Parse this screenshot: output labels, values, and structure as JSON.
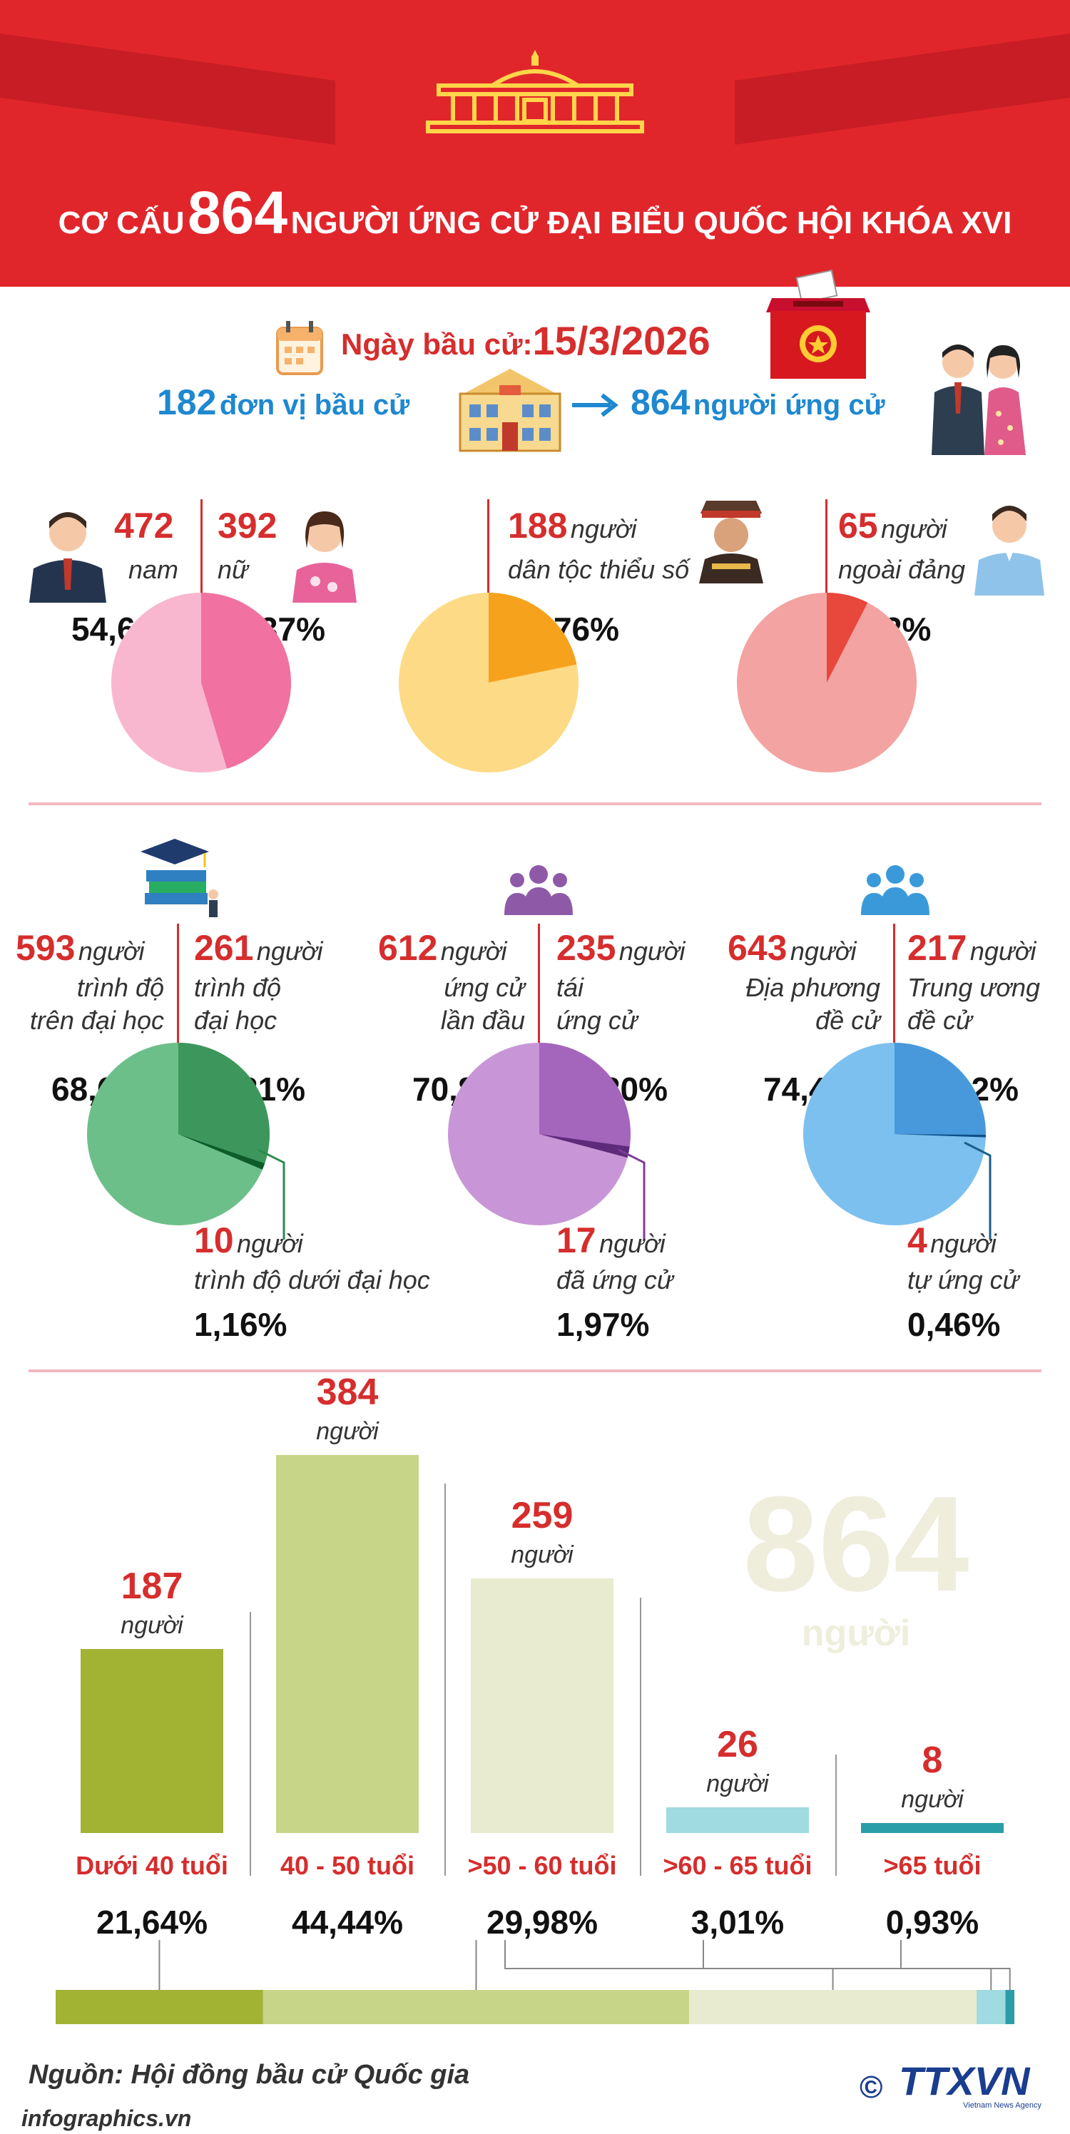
{
  "header": {
    "title_prefix": "CƠ CẤU",
    "title_number": "864",
    "title_suffix": "NGƯỜI ỨNG CỬ ĐẠI BIỂU QUỐC HỘI KHÓA XVI"
  },
  "election": {
    "date_label": "Ngày bầu cử:",
    "date_value": "15/3/2026",
    "units_num": "182",
    "units_label": "đơn vị bầu cử",
    "candidates_num": "864",
    "candidates_label": "người ứng cử"
  },
  "colors": {
    "header_red": "#e1262b",
    "pink": "#f8b7cf",
    "pink_dark": "#f06598",
    "yellow": "#fddb86",
    "orange": "#f7a21c",
    "salmon": "#f3a3a1",
    "red_slice": "#e8473b",
    "green": "#6dbf8a",
    "green_dark": "#2e8a4c",
    "purple": "#c896d6",
    "purple_dark": "#9b59b6",
    "blue": "#7cc0ef",
    "blue_dark": "#3a8fd6"
  },
  "row1": {
    "gender": {
      "male_num": "472",
      "male_label": "nam",
      "female_num": "392",
      "female_label": "nữ",
      "male_pct": "54,63%",
      "female_pct": "45,37%",
      "female_share": 0.4537
    },
    "ethnic": {
      "num": "188",
      "unit": "người",
      "label": "dân tộc thiểu số",
      "pct": "21,76%",
      "share": 0.2176
    },
    "nonparty": {
      "num": "65",
      "unit": "người",
      "label": "ngoài đảng",
      "pct": "7,52%",
      "share": 0.0752
    }
  },
  "row2": {
    "education": {
      "a_num": "593",
      "a_unit": "người",
      "a_l1": "trình độ",
      "a_l2": "trên đại học",
      "a_pct": "68,63%",
      "b_num": "261",
      "b_unit": "người",
      "b_l1": "trình độ",
      "b_l2": "đại học",
      "b_pct": "30,21%",
      "c_num": "10",
      "c_unit": "người",
      "c_l1": "trình độ dưới đại học",
      "c_pct": "1,16%",
      "b_share": 0.3021,
      "c_share": 0.0116
    },
    "terms": {
      "a_num": "612",
      "a_unit": "người",
      "a_l1": "ứng cử",
      "a_l2": "lần đầu",
      "a_pct": "70,83%",
      "b_num": "235",
      "b_unit": "người",
      "b_l1": "tái",
      "b_l2": "ứng cử",
      "b_pct": "27,20%",
      "c_num": "17",
      "c_unit": "người",
      "c_l1": "đã ứng cử",
      "c_pct": "1,97%",
      "b_share": 0.272,
      "c_share": 0.0197
    },
    "nomination": {
      "a_num": "643",
      "a_unit": "người",
      "a_l1": "Địa phương",
      "a_l2": "đề cử",
      "a_pct": "74,42%",
      "b_num": "217",
      "b_unit": "người",
      "b_l1": "Trung ương",
      "b_l2": "đề cử",
      "b_pct": "25,12%",
      "c_num": "4",
      "c_unit": "người",
      "c_l1": "tự ứng cử",
      "c_pct": "0,46%",
      "b_share": 0.2512,
      "c_share": 0.0046
    }
  },
  "chart_data": {
    "type": "bar",
    "categories": [
      "Dưới 40 tuổi",
      "40 - 50 tuổi",
      ">50 - 60 tuổi",
      ">60 - 65 tuổi",
      ">65 tuổi"
    ],
    "values": [
      187,
      384,
      259,
      26,
      8
    ],
    "value_unit": "người",
    "percent_labels": [
      "21,64%",
      "44,44%",
      "29,98%",
      "3,01%",
      "0,93%"
    ],
    "percent_values": [
      21.64,
      44.44,
      29.98,
      3.01,
      0.93
    ],
    "colors": [
      "#a2b334",
      "#c6d587",
      "#e8ebcf",
      "#9fdbe0",
      "#2a9ea8"
    ],
    "total": "864",
    "total_unit": "người",
    "ylim": [
      0,
      384
    ]
  },
  "footer": {
    "source": "Nguồn: Hội đồng bầu cử Quốc gia",
    "site": "infographics.vn",
    "copyright": "©",
    "brand": "TTXVN",
    "brand_sub": "Vietnam News Agency"
  }
}
